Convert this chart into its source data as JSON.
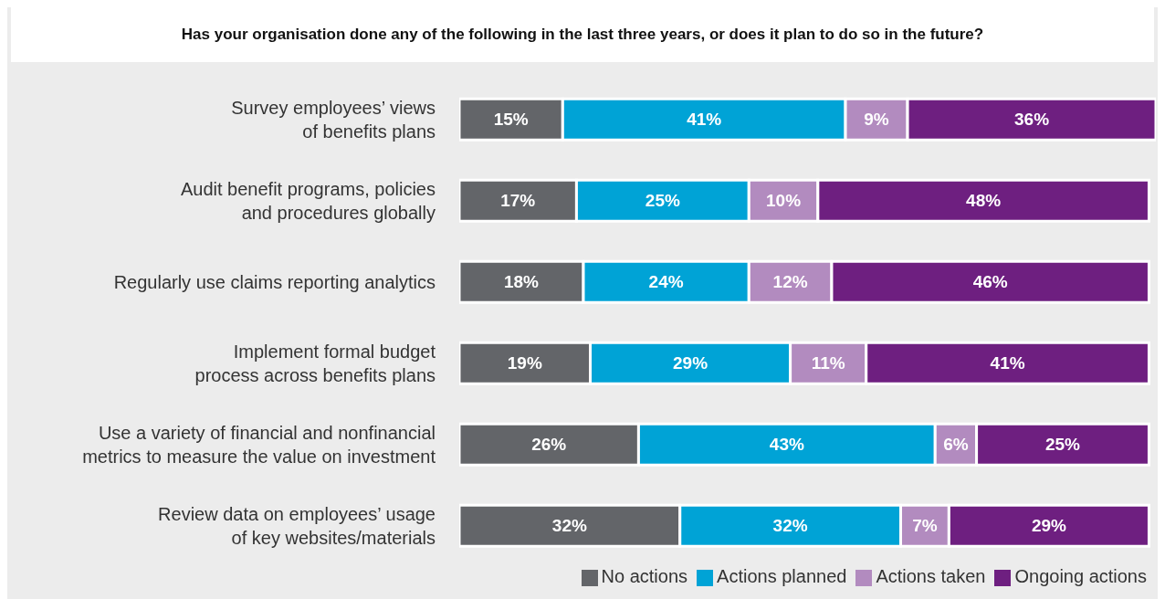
{
  "chart_data": {
    "type": "bar",
    "orientation": "horizontal",
    "stacked": true,
    "title": "Has your organisation done any of the following in the last three years, or does it plan to do so in the future?",
    "categories": [
      "Survey employees’ views\nof benefits plans",
      "Audit benefit programs, policies\nand procedures globally",
      "Regularly use claims reporting analytics",
      "Implement formal budget\nprocess across benefits plans",
      "Use a variety of financial and nonfinancial\nmetrics to measure the value on investment",
      "Review data on employees’ usage\nof key websites/materials"
    ],
    "series": [
      {
        "name": "No actions",
        "color": "#636569",
        "values": [
          15,
          17,
          18,
          19,
          26,
          32
        ],
        "value_labels": [
          "15%",
          "17%",
          "18%",
          "19%",
          "26%",
          "32%"
        ]
      },
      {
        "name": "Actions planned",
        "color": "#00a3d6",
        "values": [
          41,
          25,
          24,
          29,
          43,
          32
        ],
        "value_labels": [
          "41%",
          "25%",
          "24%",
          "29%",
          "43%",
          "32%"
        ]
      },
      {
        "name": "Actions taken",
        "color": "#b28bbf",
        "values": [
          9,
          10,
          12,
          11,
          6,
          7
        ],
        "value_labels": [
          "9%",
          "10%",
          "12%",
          "11%",
          "6%",
          "7%"
        ]
      },
      {
        "name": "Ongoing actions",
        "color": "#6e1f80",
        "values": [
          36,
          48,
          46,
          41,
          25,
          29
        ],
        "value_labels": [
          "36%",
          "48%",
          "46%",
          "41%",
          "25%",
          "29%"
        ]
      }
    ],
    "legend": "bottom right"
  }
}
